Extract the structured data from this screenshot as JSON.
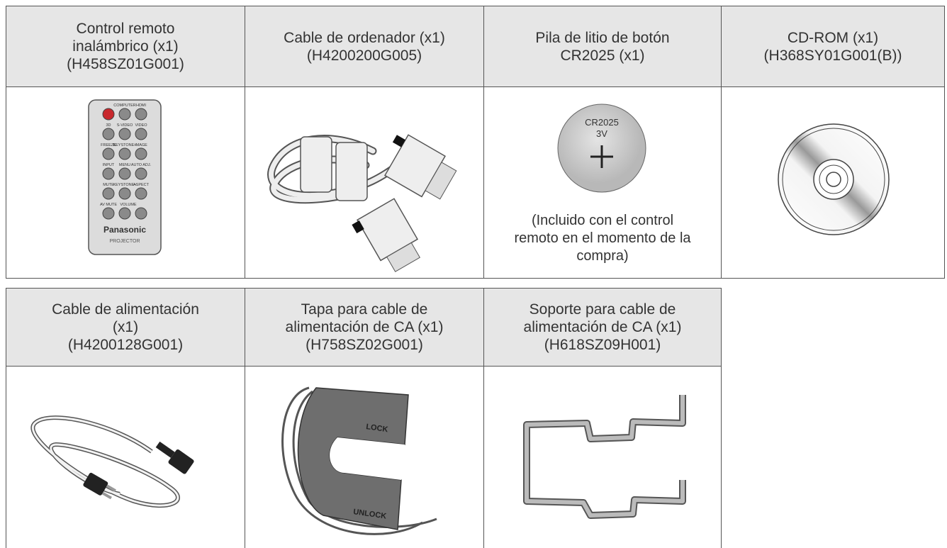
{
  "tables": [
    {
      "cells": [
        {
          "header": [
            "Control remoto",
            "inalámbrico (x1)",
            "(H458SZ01G001)"
          ]
        },
        {
          "header": [
            "Cable de ordenador (x1)",
            "(H4200200G005)"
          ]
        },
        {
          "header": [
            "Pila de litio de botón",
            "CR2025 (x1)"
          ],
          "caption": [
            "(Incluido con el control",
            "remoto en el momento de la",
            "compra)"
          ]
        },
        {
          "header": [
            "CD-ROM (x1)",
            "(H368SY01G001(B))"
          ]
        }
      ]
    },
    {
      "cells": [
        {
          "header": [
            "Cable de alimentación",
            "(x1)",
            "(H4200128G001)"
          ]
        },
        {
          "header": [
            "Tapa para cable de",
            "alimentación de CA (x1)",
            "(H758SZ02G001)"
          ]
        },
        {
          "header": [
            "Soporte para cable de",
            "alimentación de CA (x1)",
            "(H618SZ09H001)"
          ]
        }
      ]
    }
  ],
  "illustrations": {
    "remote": {
      "brand": "Panasonic",
      "model": "PROJECTOR",
      "buttons": [
        "COMPUTER",
        "HDMI",
        "3D",
        "S-VIDEO",
        "VIDEO",
        "FREEZE",
        "KEYSTONE+",
        "IMAGE",
        "INPUT",
        "MENU",
        "AUTO ADJ.",
        "MUTE",
        "KEYSTONE−",
        "ASPECT",
        "AV MUTE",
        "VOLUME"
      ]
    },
    "battery": {
      "model": "CR2025",
      "voltage": "3V"
    },
    "cable_cover": {
      "lock": "LOCK",
      "unlock": "UNLOCK"
    }
  }
}
